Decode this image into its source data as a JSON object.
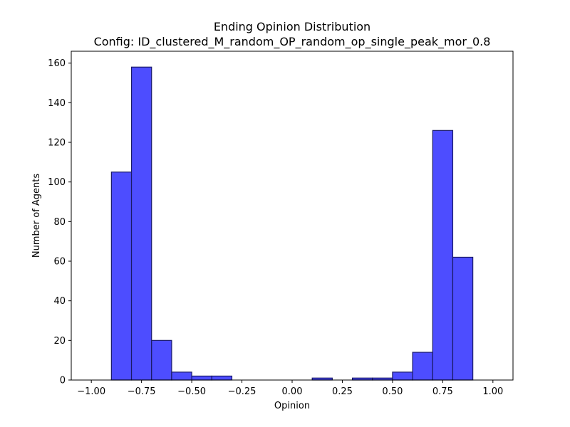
{
  "chart_data": {
    "type": "bar",
    "title": "Ending Opinion Distribution",
    "subtitle": "Config: ID_clustered_M_random_OP_random_op_single_peak_mor_0.8",
    "xlabel": "Opinion",
    "ylabel": "Number of Agents",
    "xlim": [
      -1.1,
      1.1
    ],
    "ylim": [
      0,
      166
    ],
    "x_ticks": [
      -1.0,
      -0.75,
      -0.5,
      -0.25,
      0.0,
      0.25,
      0.5,
      0.75,
      1.0
    ],
    "x_tick_labels": [
      "−1.00",
      "−0.75",
      "−0.50",
      "−0.25",
      "0.00",
      "0.25",
      "0.50",
      "0.75",
      "1.00"
    ],
    "y_ticks": [
      0,
      20,
      40,
      60,
      80,
      100,
      120,
      140,
      160
    ],
    "y_tick_labels": [
      "0",
      "20",
      "40",
      "60",
      "80",
      "100",
      "120",
      "140",
      "160"
    ],
    "bin_width": 0.1,
    "bins": [
      {
        "left": -0.9,
        "count": 105
      },
      {
        "left": -0.8,
        "count": 158
      },
      {
        "left": -0.7,
        "count": 20
      },
      {
        "left": -0.6,
        "count": 4
      },
      {
        "left": -0.5,
        "count": 2
      },
      {
        "left": -0.4,
        "count": 2
      },
      {
        "left": -0.3,
        "count": 0
      },
      {
        "left": -0.2,
        "count": 0
      },
      {
        "left": -0.1,
        "count": 0
      },
      {
        "left": 0.0,
        "count": 0
      },
      {
        "left": 0.1,
        "count": 1
      },
      {
        "left": 0.2,
        "count": 0
      },
      {
        "left": 0.3,
        "count": 1
      },
      {
        "left": 0.4,
        "count": 1
      },
      {
        "left": 0.5,
        "count": 4
      },
      {
        "left": 0.6,
        "count": 14
      },
      {
        "left": 0.7,
        "count": 126
      },
      {
        "left": 0.8,
        "count": 62
      }
    ],
    "bar_color": "#4d4dff",
    "edge_color": "#1a1a66",
    "grid": false,
    "legend": "none"
  }
}
